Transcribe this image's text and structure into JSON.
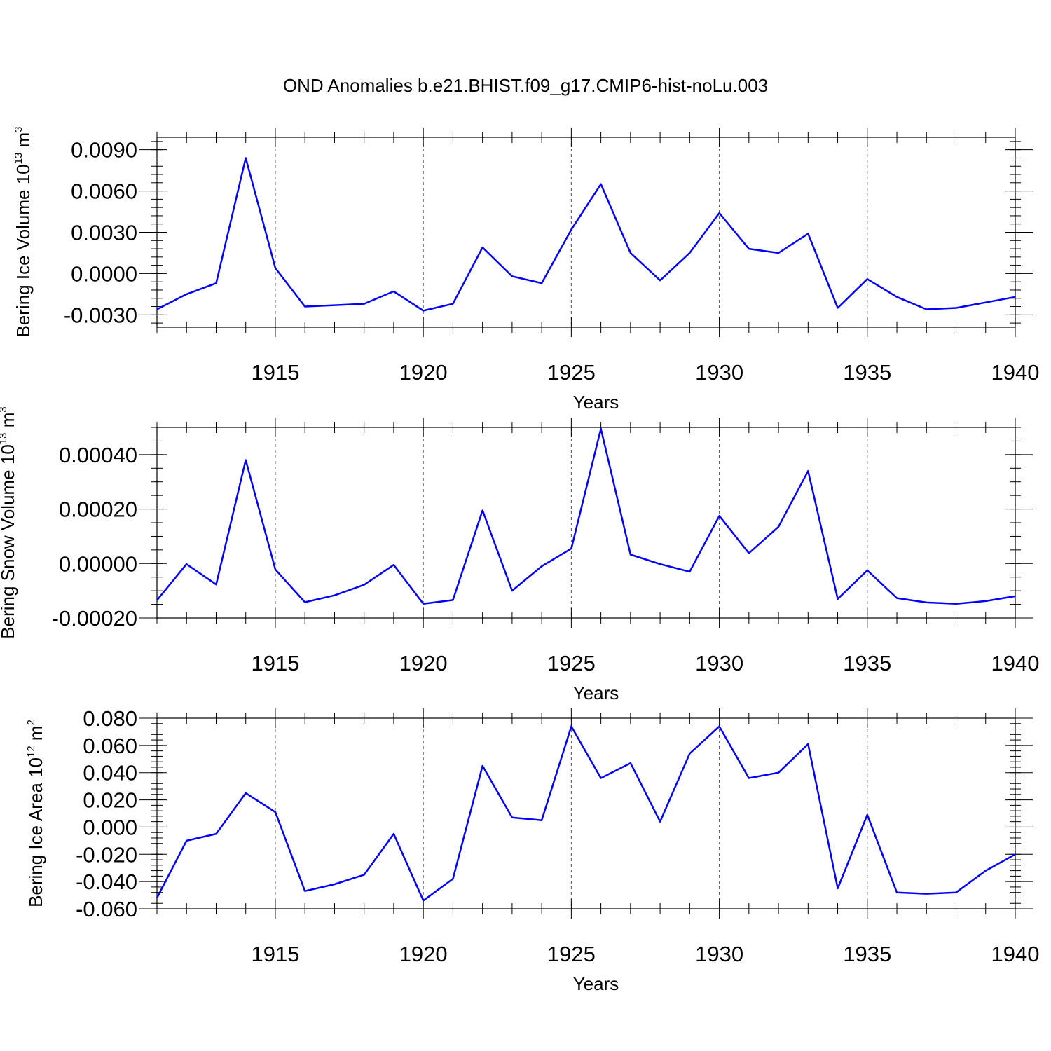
{
  "title": "OND Anomalies b.e21.BHIST.f09_g17.CMIP6-hist-noLu.003",
  "colors": {
    "line": "#0000ff",
    "axis": "#000000",
    "grid": "#555555"
  },
  "chart_data": [
    {
      "type": "line",
      "ylabel": {
        "text": "Bering Ice Volume 10",
        "sup": "13",
        "unit": " m",
        "unit_sup": "3"
      },
      "xlabel": "Years",
      "xlim": [
        1911,
        1940
      ],
      "ylim": [
        -0.0039,
        0.0099
      ],
      "xticks": [
        1915,
        1920,
        1925,
        1930,
        1935,
        1940
      ],
      "xtick_labels": [
        "1915",
        "1920",
        "1925",
        "1930",
        "1935",
        "1940"
      ],
      "yticks": [
        -0.003,
        0.0,
        0.003,
        0.006,
        0.009
      ],
      "ytick_labels": [
        "-0.0030",
        "0.0000",
        "0.0030",
        "0.0060",
        "0.0090"
      ],
      "y_minor_step": 0.0006,
      "grid": "vertical dashed at major x ticks",
      "x": [
        1911,
        1912,
        1913,
        1914,
        1915,
        1916,
        1917,
        1918,
        1919,
        1920,
        1921,
        1922,
        1923,
        1924,
        1925,
        1926,
        1927,
        1928,
        1929,
        1930,
        1931,
        1932,
        1933,
        1934,
        1935,
        1936,
        1937,
        1938,
        1939,
        1940
      ],
      "series": [
        {
          "name": "Bering Ice Volume",
          "values": [
            -0.0026,
            -0.0015,
            -0.0007,
            0.0084,
            0.0004,
            -0.0024,
            -0.0023,
            -0.0022,
            -0.0013,
            -0.0027,
            -0.0022,
            0.0019,
            -0.0002,
            -0.0007,
            0.0032,
            0.0065,
            0.0015,
            -0.0005,
            0.0015,
            0.0044,
            0.0018,
            0.0015,
            0.0029,
            -0.0025,
            -0.0004,
            -0.0017,
            -0.0026,
            -0.0025,
            -0.0021,
            -0.0017
          ]
        }
      ]
    },
    {
      "type": "line",
      "ylabel": {
        "text": "Bering Snow Volume 10",
        "sup": "13",
        "unit": " m",
        "unit_sup": "3"
      },
      "xlabel": "Years",
      "xlim": [
        1911,
        1940
      ],
      "ylim": [
        -0.0002,
        0.0005
      ],
      "xticks": [
        1915,
        1920,
        1925,
        1930,
        1935,
        1940
      ],
      "xtick_labels": [
        "1915",
        "1920",
        "1925",
        "1930",
        "1935",
        "1940"
      ],
      "yticks": [
        -0.0002,
        0.0,
        0.0002,
        0.0004
      ],
      "ytick_labels": [
        "-0.00020",
        "0.00000",
        "0.00020",
        "0.00040"
      ],
      "y_minor_step": 5e-05,
      "grid": "vertical dashed at major x ticks",
      "x": [
        1911,
        1912,
        1913,
        1914,
        1915,
        1916,
        1917,
        1918,
        1919,
        1920,
        1921,
        1922,
        1923,
        1924,
        1925,
        1926,
        1927,
        1928,
        1929,
        1930,
        1931,
        1932,
        1933,
        1934,
        1935,
        1936,
        1937,
        1938,
        1939,
        1940
      ],
      "series": [
        {
          "name": "Bering Snow Volume",
          "values": [
            -0.000135,
            -2e-06,
            -7.7e-05,
            0.00038,
            -2.2e-05,
            -0.000142,
            -0.000117,
            -7.8e-05,
            -5e-06,
            -0.000148,
            -0.000134,
            0.000195,
            -0.0001,
            -1e-05,
            5.5e-05,
            0.000495,
            3.3e-05,
            -2e-06,
            -3e-05,
            0.000175,
            3.8e-05,
            0.000135,
            0.00034,
            -0.00013,
            -2.5e-05,
            -0.000127,
            -0.000143,
            -0.000148,
            -0.000138,
            -0.00012
          ]
        }
      ]
    },
    {
      "type": "line",
      "ylabel": {
        "text": "Bering Ice Area 10",
        "sup": "12",
        "unit": " m",
        "unit_sup": "2"
      },
      "xlabel": "Years",
      "xlim": [
        1911,
        1940
      ],
      "ylim": [
        -0.06,
        0.08
      ],
      "xticks": [
        1915,
        1920,
        1925,
        1930,
        1935,
        1940
      ],
      "xtick_labels": [
        "1915",
        "1920",
        "1925",
        "1930",
        "1935",
        "1940"
      ],
      "yticks": [
        -0.06,
        -0.04,
        -0.02,
        0.0,
        0.02,
        0.04,
        0.06,
        0.08
      ],
      "ytick_labels": [
        "-0.060",
        "-0.040",
        "-0.020",
        "0.000",
        "0.020",
        "0.040",
        "0.060",
        "0.080"
      ],
      "y_minor_step": 0.004,
      "grid": "vertical dashed at major x ticks",
      "x": [
        1911,
        1912,
        1913,
        1914,
        1915,
        1916,
        1917,
        1918,
        1919,
        1920,
        1921,
        1922,
        1923,
        1924,
        1925,
        1926,
        1927,
        1928,
        1929,
        1930,
        1931,
        1932,
        1933,
        1934,
        1935,
        1936,
        1937,
        1938,
        1939,
        1940
      ],
      "series": [
        {
          "name": "Bering Ice Area",
          "values": [
            -0.052,
            -0.01,
            -0.005,
            0.025,
            0.011,
            -0.047,
            -0.042,
            -0.035,
            -0.005,
            -0.054,
            -0.038,
            0.045,
            0.007,
            0.005,
            0.074,
            0.036,
            0.047,
            0.004,
            0.054,
            0.074,
            0.036,
            0.04,
            0.061,
            -0.045,
            0.009,
            -0.048,
            -0.049,
            -0.048,
            -0.032,
            -0.02
          ]
        }
      ]
    }
  ]
}
